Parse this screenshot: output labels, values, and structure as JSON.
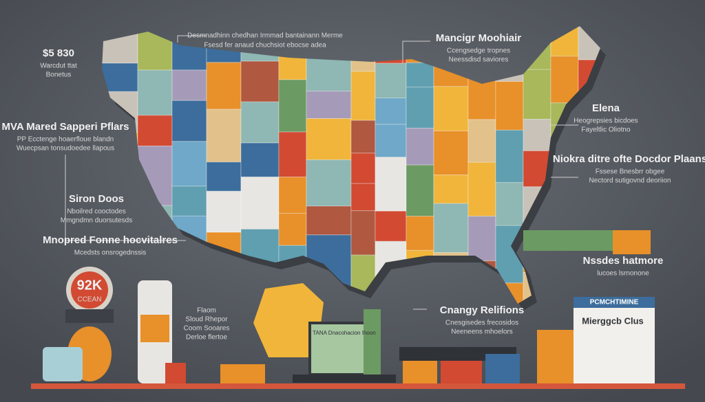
{
  "top_note": {
    "line1": "Desmnadhinn chedhan Irmmad bantainann Merme",
    "line2": "Fsesd fer anaud chuchsiot ebocse adea"
  },
  "left_labels": [
    {
      "title": "$5 830",
      "lines": [
        "Warcdut ttat",
        "Bonetus"
      ]
    },
    {
      "title": "MVA Mared Sapperi Pflars",
      "lines": [
        "PP Ecctenge hoaerfloue blandn",
        "Wuecpsan tonsudoedee llapous"
      ]
    },
    {
      "title": "Siron Doos",
      "lines": [
        "Nboilred cooctodes",
        "Mmgndmn duorsutesds"
      ]
    },
    {
      "title": "Mnopred Fonne hocvitalres",
      "lines": [
        "Mcedsts onsrogednssis"
      ]
    }
  ],
  "right_labels": [
    {
      "title": "Mancigr Moohiair",
      "lines": [
        "Ccengsedge tropnes",
        "Neessdisd saviores"
      ]
    },
    {
      "title": "Elena",
      "lines": [
        "Heogrepsies bicdoes",
        "Fayeltlic Oliotno"
      ]
    },
    {
      "title": "Niokra ditre ofte Docdor Plaans",
      "lines": [
        "Fssese Bnesbrr obgee",
        "Nectord sutigovnd deoriion"
      ]
    },
    {
      "title": "Nssdes hatmore",
      "lines": [
        "lucoes lsrnonone"
      ]
    }
  ],
  "center_label": {
    "title": "Cnangy Relifions",
    "lines": [
      "Cnesgisedes frecosidos",
      "Neeneens mhoelors"
    ]
  },
  "gauge": {
    "value": "92K",
    "caption": "CCEAN"
  },
  "bottle_note": {
    "lines": [
      "Flaom",
      "Sloud Rhepor",
      "Coom Sooares",
      "Derloe flertoe"
    ]
  },
  "document": {
    "header": "PCMCHTIMINE",
    "title": "Mierggcb Clus"
  },
  "laptop": {
    "title": "TANA Dnacohacion Ihoon"
  }
}
